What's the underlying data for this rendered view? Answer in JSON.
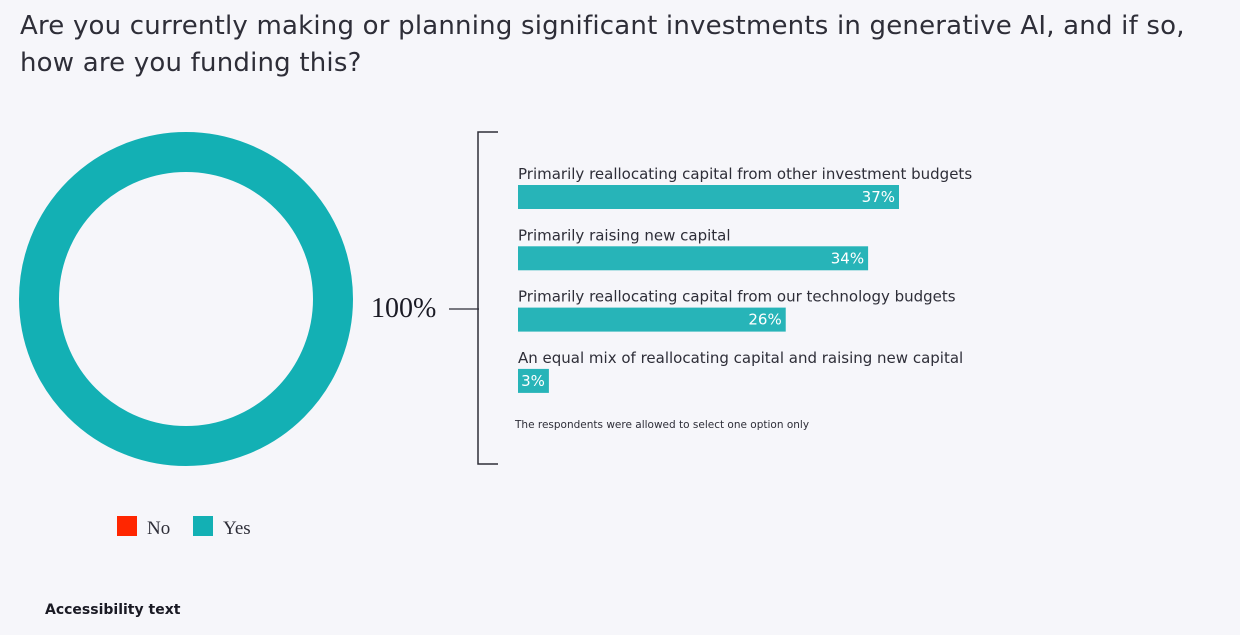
{
  "title": "Are you currently making or planning significant investments in generative AI, and if so, how are you funding this?",
  "accessibility_link": "Accessibility text",
  "colors": {
    "yes": "#13b0b4",
    "no": "#ff2600",
    "bar": "#27b4b8",
    "background": "#f6f6fa"
  },
  "chart_data": [
    {
      "type": "pie",
      "style": "donut",
      "slices": [
        {
          "label": "No",
          "value": 0,
          "color": "#ff2600"
        },
        {
          "label": "Yes",
          "value": 100,
          "color": "#13b0b4"
        }
      ],
      "total_label": "100%",
      "legend": [
        "No",
        "Yes"
      ],
      "legend_position": "bottom"
    },
    {
      "type": "bar",
      "orientation": "horizontal",
      "categories": [
        "Primarily reallocating capital from other investment budgets",
        "Primarily raising new capital",
        "Primarily reallocating capital from our technology budgets",
        "An equal mix of reallocating capital and raising new capital"
      ],
      "values": [
        37,
        34,
        26,
        3
      ],
      "value_labels": [
        "37%",
        "34%",
        "26%",
        "3%"
      ],
      "note": "The respondents were allowed to select one option only"
    }
  ]
}
